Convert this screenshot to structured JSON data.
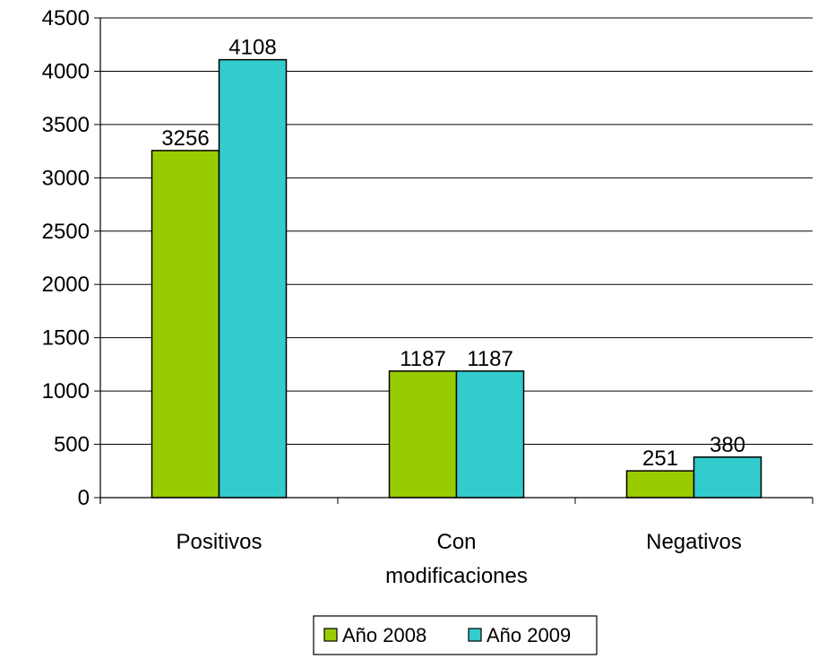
{
  "chart_data": {
    "type": "bar",
    "title": "",
    "xlabel": "",
    "ylabel": "",
    "categories": [
      [
        "Positivos"
      ],
      [
        "Con",
        "modificaciones"
      ],
      [
        "Negativos"
      ]
    ],
    "series": [
      {
        "name": "Año 2008",
        "color": "#99CC00",
        "values": [
          3256,
          1187,
          251
        ]
      },
      {
        "name": "Año 2009",
        "color": "#33CCCC",
        "values": [
          4108,
          1187,
          380
        ]
      }
    ],
    "ylim": [
      0,
      4500
    ],
    "yticks": [
      0,
      500,
      1000,
      1500,
      2000,
      2500,
      3000,
      3500,
      4000,
      4500
    ],
    "grid": true,
    "legend_position": "bottom-center"
  }
}
